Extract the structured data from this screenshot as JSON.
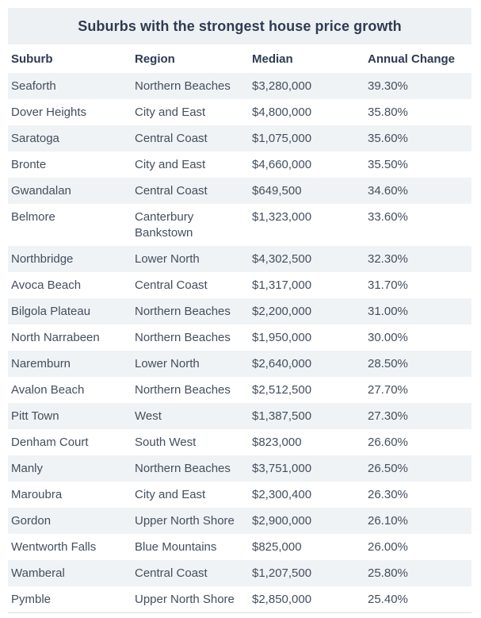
{
  "title": "Suburbs with the strongest house price growth",
  "colors": {
    "title_bar_bg": "#eef1f4",
    "stripe_bg": "#f0f3f5",
    "heading_text": "#2e3b52",
    "body_text": "#434f5e",
    "bottom_border": "#d9dee3"
  },
  "table": {
    "columns": [
      "Suburb",
      "Region",
      "Median",
      "Annual Change"
    ],
    "rows": [
      [
        "Seaforth",
        "Northern Beaches",
        "$3,280,000",
        "39.30%"
      ],
      [
        "Dover Heights",
        "City and East",
        "$4,800,000",
        "35.80%"
      ],
      [
        "Saratoga",
        "Central Coast",
        "$1,075,000",
        "35.60%"
      ],
      [
        "Bronte",
        "City and East",
        "$4,660,000",
        "35.50%"
      ],
      [
        "Gwandalan",
        "Central Coast",
        "$649,500",
        "34.60%"
      ],
      [
        "Belmore",
        "Canterbury Bankstown",
        "$1,323,000",
        "33.60%"
      ],
      [
        "Northbridge",
        "Lower North",
        "$4,302,500",
        "32.30%"
      ],
      [
        "Avoca Beach",
        "Central Coast",
        "$1,317,000",
        "31.70%"
      ],
      [
        "Bilgola Plateau",
        "Northern Beaches",
        "$2,200,000",
        "31.00%"
      ],
      [
        "North Narrabeen",
        "Northern Beaches",
        "$1,950,000",
        "30.00%"
      ],
      [
        "Naremburn",
        "Lower North",
        "$2,640,000",
        "28.50%"
      ],
      [
        "Avalon Beach",
        "Northern Beaches",
        "$2,512,500",
        "27.70%"
      ],
      [
        "Pitt Town",
        "West",
        "$1,387,500",
        "27.30%"
      ],
      [
        "Denham Court",
        "South West",
        "$823,000",
        "26.60%"
      ],
      [
        "Manly",
        "Northern Beaches",
        "$3,751,000",
        "26.50%"
      ],
      [
        "Maroubra",
        "City and East",
        "$2,300,400",
        "26.30%"
      ],
      [
        "Gordon",
        "Upper North Shore",
        "$2,900,000",
        "26.10%"
      ],
      [
        "Wentworth Falls",
        "Blue Mountains",
        "$825,000",
        "26.00%"
      ],
      [
        "Wamberal",
        "Central Coast",
        "$1,207,500",
        "25.80%"
      ],
      [
        "Pymble",
        "Upper North Shore",
        "$2,850,000",
        "25.40%"
      ]
    ]
  },
  "chart_data": {
    "type": "table",
    "title": "Suburbs with the strongest house price growth",
    "columns": [
      "Suburb",
      "Region",
      "Median",
      "Annual Change"
    ],
    "rows": [
      {
        "suburb": "Seaforth",
        "region": "Northern Beaches",
        "median": "$3,280,000",
        "annual_change": "39.30%"
      },
      {
        "suburb": "Dover Heights",
        "region": "City and East",
        "median": "$4,800,000",
        "annual_change": "35.80%"
      },
      {
        "suburb": "Saratoga",
        "region": "Central Coast",
        "median": "$1,075,000",
        "annual_change": "35.60%"
      },
      {
        "suburb": "Bronte",
        "region": "City and East",
        "median": "$4,660,000",
        "annual_change": "35.50%"
      },
      {
        "suburb": "Gwandalan",
        "region": "Central Coast",
        "median": "$649,500",
        "annual_change": "34.60%"
      },
      {
        "suburb": "Belmore",
        "region": "Canterbury Bankstown",
        "median": "$1,323,000",
        "annual_change": "33.60%"
      },
      {
        "suburb": "Northbridge",
        "region": "Lower North",
        "median": "$4,302,500",
        "annual_change": "32.30%"
      },
      {
        "suburb": "Avoca Beach",
        "region": "Central Coast",
        "median": "$1,317,000",
        "annual_change": "31.70%"
      },
      {
        "suburb": "Bilgola Plateau",
        "region": "Northern Beaches",
        "median": "$2,200,000",
        "annual_change": "31.00%"
      },
      {
        "suburb": "North Narrabeen",
        "region": "Northern Beaches",
        "median": "$1,950,000",
        "annual_change": "30.00%"
      },
      {
        "suburb": "Naremburn",
        "region": "Lower North",
        "median": "$2,640,000",
        "annual_change": "28.50%"
      },
      {
        "suburb": "Avalon Beach",
        "region": "Northern Beaches",
        "median": "$2,512,500",
        "annual_change": "27.70%"
      },
      {
        "suburb": "Pitt Town",
        "region": "West",
        "median": "$1,387,500",
        "annual_change": "27.30%"
      },
      {
        "suburb": "Denham Court",
        "region": "South West",
        "median": "$823,000",
        "annual_change": "26.60%"
      },
      {
        "suburb": "Manly",
        "region": "Northern Beaches",
        "median": "$3,751,000",
        "annual_change": "26.50%"
      },
      {
        "suburb": "Maroubra",
        "region": "City and East",
        "median": "$2,300,400",
        "annual_change": "26.30%"
      },
      {
        "suburb": "Gordon",
        "region": "Upper North Shore",
        "median": "$2,900,000",
        "annual_change": "26.10%"
      },
      {
        "suburb": "Wentworth Falls",
        "region": "Blue Mountains",
        "median": "$825,000",
        "annual_change": "26.00%"
      },
      {
        "suburb": "Wamberal",
        "region": "Central Coast",
        "median": "$1,207,500",
        "annual_change": "25.80%"
      },
      {
        "suburb": "Pymble",
        "region": "Upper North Shore",
        "median": "$2,850,000",
        "annual_change": "25.40%"
      }
    ]
  }
}
